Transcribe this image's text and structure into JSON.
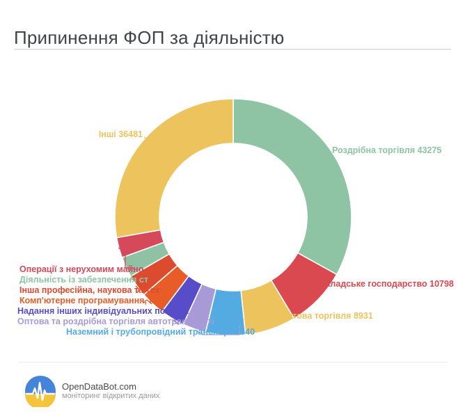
{
  "page": {
    "title": "Припинення ФОП за діяльністю"
  },
  "chart_data": {
    "type": "donut",
    "title": "Припинення ФОП за діяльністю",
    "legend_position": "around",
    "start_angle_deg": 0,
    "direction": "clockwise",
    "segments": [
      {
        "label": "Роздрібна торгівля",
        "value": 43275,
        "display": "Роздрібна торгівля 43275",
        "color": "#8EC3A3",
        "angle_deg": 119
      },
      {
        "label": "Складське господарство",
        "value": 10798,
        "display": "Складське господарство 10798",
        "color": "#D9494F",
        "angle_deg": 30
      },
      {
        "label": "Оптова торгівля",
        "value": 8931,
        "display": "Оптова торгівля 8931",
        "color": "#ECC35D",
        "angle_deg": 25
      },
      {
        "label": "Наземний і трубопровідний транспорт",
        "value": 7040,
        "display": "Наземний і трубопровідний транспорт 7040",
        "color": "#54ABE2",
        "angle_deg": 19.5
      },
      {
        "label": "Оптова та роздрібна торгівля автотранспортом",
        "value": null,
        "display": "Оптова та роздрібна торгівля автотранспорті",
        "color": "#A89AD7",
        "angle_deg": 11.5
      },
      {
        "label": "Надання інших індивідуальних послуг",
        "value": null,
        "display": "Надання інших індивідуальних послуг :",
        "color": "#584DC9",
        "angle_deg": 12
      },
      {
        "label": "Комп'ютерне програмування",
        "value": null,
        "display": "Комп'ютерне програмування, конс",
        "color": "#E85C28",
        "angle_deg": 12
      },
      {
        "label": "Інша професійна, наукова та технічна діяльність",
        "value": null,
        "display": "Інша професійна, наукова та тех",
        "color": "#DC4B2E",
        "angle_deg": 11
      },
      {
        "label": "Діяльність із забезпечення",
        "value": null,
        "display": "Діяльність із забезпечення ст",
        "color": "#8FC2A4",
        "angle_deg": 10
      },
      {
        "label": "Операції з нерухомим майном",
        "value": null,
        "display": "Операції з нерухомим майно",
        "color": "#D5495A",
        "angle_deg": 10
      },
      {
        "label": "Інші",
        "value": 36481,
        "display": "Інші 36481",
        "color": "#ECC35D",
        "angle_deg": 100
      }
    ]
  },
  "footer": {
    "brand": "OpenDataBot.com",
    "tagline": "моніторинг відкритих даних",
    "logo_colors": {
      "blue": "#4584D8",
      "yellow": "#F3C43C"
    }
  }
}
